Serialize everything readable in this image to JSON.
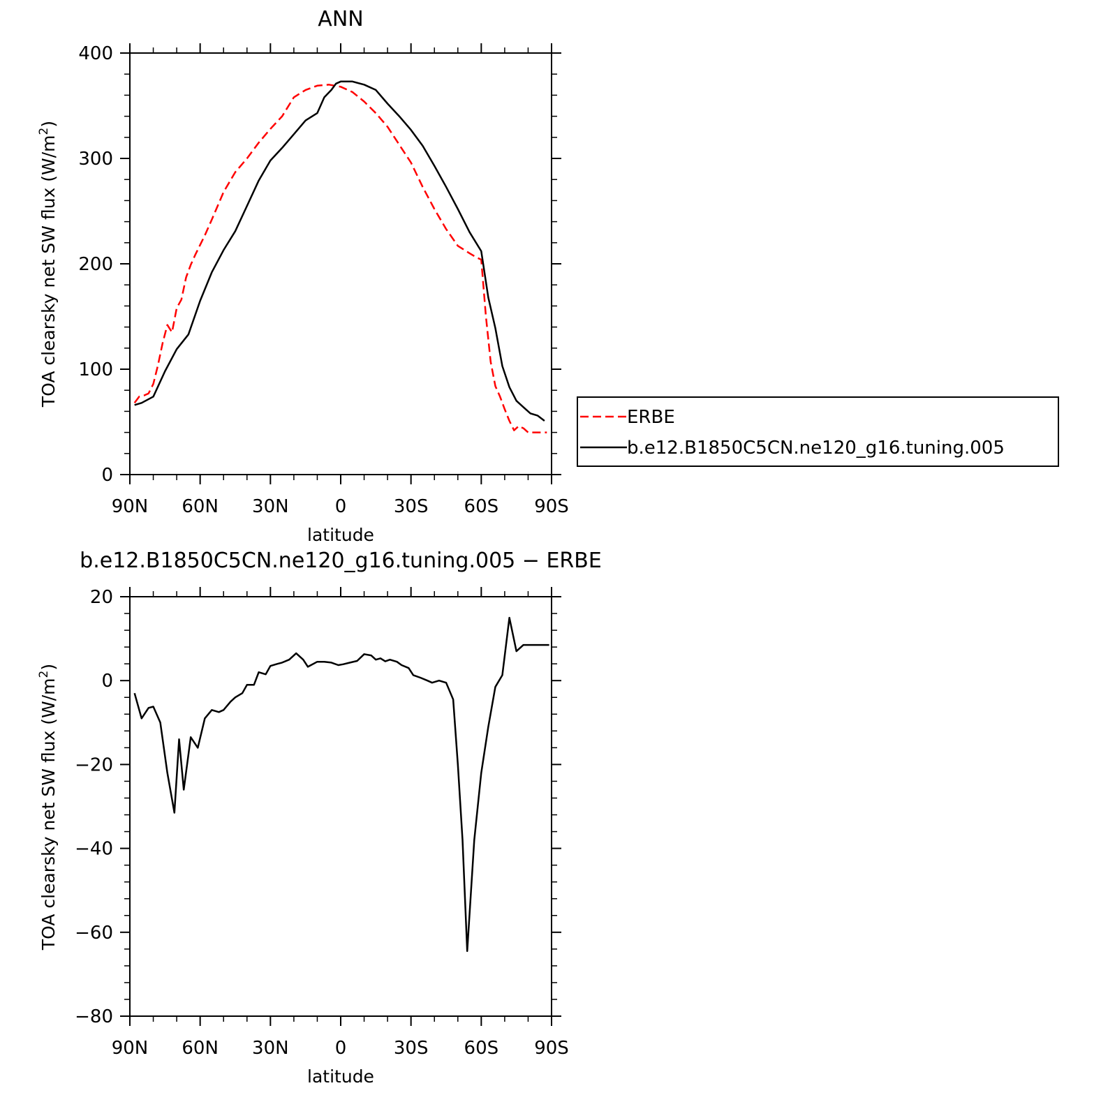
{
  "chart_data": [
    {
      "type": "line",
      "title": "ANN",
      "xlabel": "latitude",
      "ylabel": "TOA clearsky net SW flux (W/m",
      "ylabel_sup": "2",
      "ylabel_tail": ")",
      "xlim": [
        90,
        -90
      ],
      "ylim": [
        0,
        400
      ],
      "x_ticks": [
        {
          "value": 90,
          "label": "90N"
        },
        {
          "value": 60,
          "label": "60N"
        },
        {
          "value": 30,
          "label": "30N"
        },
        {
          "value": 0,
          "label": "0"
        },
        {
          "value": -30,
          "label": "30S"
        },
        {
          "value": -60,
          "label": "60S"
        },
        {
          "value": -90,
          "label": "90S"
        }
      ],
      "y_ticks": [
        {
          "value": 0,
          "label": "0"
        },
        {
          "value": 100,
          "label": "100"
        },
        {
          "value": 200,
          "label": "200"
        },
        {
          "value": 300,
          "label": "300"
        },
        {
          "value": 400,
          "label": "400"
        }
      ],
      "legend": {
        "placement": "right"
      },
      "series": [
        {
          "name": "ERBE",
          "color": "#ff0000",
          "dash": "dashed",
          "x": [
            88,
            86,
            84,
            82,
            80,
            78,
            76,
            74,
            72,
            70,
            68,
            66,
            64,
            62,
            60,
            58,
            55,
            50,
            45,
            40,
            35,
            30,
            25,
            20,
            15,
            10,
            5,
            0,
            -5,
            -10,
            -15,
            -20,
            -25,
            -30,
            -35,
            -40,
            -45,
            -50,
            -55,
            -58,
            -60,
            -62,
            -64,
            -66,
            -68,
            -70,
            -72,
            -74,
            -76,
            -78,
            -80,
            -82,
            -84,
            -86,
            -88
          ],
          "y": [
            68,
            74,
            75,
            77,
            86,
            104,
            125,
            142,
            135,
            158,
            166,
            187,
            199,
            209,
            218,
            227,
            242,
            268,
            287,
            300,
            315,
            328,
            340,
            358,
            365,
            369,
            370,
            368,
            363,
            354,
            343,
            330,
            313,
            296,
            273,
            252,
            233,
            217,
            210,
            206,
            204,
            150,
            107,
            84,
            74,
            62,
            51,
            42,
            46,
            44,
            40,
            40,
            40,
            40,
            40
          ]
        },
        {
          "name": "b.e12.B1850C5CN.ne120_g16.tuning.005",
          "color": "#000000",
          "dash": "solid",
          "x": [
            88,
            85,
            80,
            75,
            70,
            65,
            60,
            55,
            50,
            45,
            40,
            35,
            30,
            25,
            20,
            15,
            10,
            7,
            4,
            2,
            0,
            -5,
            -10,
            -15,
            -20,
            -25,
            -30,
            -35,
            -40,
            -45,
            -50,
            -55,
            -60,
            -63,
            -66,
            -69,
            -72,
            -75,
            -78,
            -81,
            -84,
            -87
          ],
          "y": [
            66,
            68,
            74,
            98,
            119,
            133,
            165,
            192,
            213,
            231,
            255,
            279,
            298,
            310,
            323,
            336,
            343,
            358,
            365,
            371,
            373,
            373,
            370,
            365,
            352,
            340,
            327,
            312,
            293,
            273,
            252,
            230,
            212,
            168,
            139,
            103,
            83,
            70,
            64,
            58,
            56,
            51
          ]
        }
      ]
    },
    {
      "type": "line",
      "title": "b.e12.B1850C5CN.ne120_g16.tuning.005 − ERBE",
      "xlabel": "latitude",
      "ylabel": "TOA clearsky net SW flux (W/m",
      "ylabel_sup": "2",
      "ylabel_tail": ")",
      "xlim": [
        90,
        -90
      ],
      "ylim": [
        -80,
        20
      ],
      "x_ticks": [
        {
          "value": 90,
          "label": "90N"
        },
        {
          "value": 60,
          "label": "60N"
        },
        {
          "value": 30,
          "label": "30N"
        },
        {
          "value": 0,
          "label": "0"
        },
        {
          "value": -30,
          "label": "30S"
        },
        {
          "value": -60,
          "label": "60S"
        },
        {
          "value": -90,
          "label": "90S"
        }
      ],
      "y_ticks": [
        {
          "value": -80,
          "label": "−80"
        },
        {
          "value": -60,
          "label": "−60"
        },
        {
          "value": -40,
          "label": "−40"
        },
        {
          "value": -20,
          "label": "−20"
        },
        {
          "value": 0,
          "label": "0"
        },
        {
          "value": 20,
          "label": "20"
        }
      ],
      "series": [
        {
          "color": "#000000",
          "dash": "solid",
          "x": [
            88,
            85,
            82,
            80,
            77,
            74,
            71,
            69,
            67,
            64,
            61,
            58,
            55,
            52,
            50,
            47,
            45,
            42,
            40,
            37,
            35,
            32,
            30,
            27,
            25,
            22,
            19,
            16,
            14,
            10,
            7,
            4,
            1,
            -1,
            -4,
            -7,
            -10,
            -13,
            -15,
            -17,
            -19,
            -21,
            -24,
            -26,
            -29,
            -31,
            -34,
            -37,
            -39,
            -42,
            -45,
            -48,
            -50,
            -52,
            -54,
            -57,
            -60,
            -63,
            -66,
            -69,
            -72,
            -75,
            -78,
            -81,
            -84,
            -87,
            -89
          ],
          "y": [
            -3,
            -9,
            -6.5,
            -6.2,
            -10,
            -22,
            -31.5,
            -14,
            -26,
            -13.5,
            -16,
            -9,
            -7,
            -7.5,
            -7,
            -5,
            -4,
            -3,
            -1,
            -1,
            2,
            1.5,
            3.5,
            4,
            4.3,
            5,
            6.5,
            5,
            3.3,
            4.5,
            4.5,
            4.3,
            3.7,
            3.9,
            4.3,
            4.7,
            6.3,
            6,
            5,
            5.3,
            4.6,
            5,
            4.5,
            3.7,
            3,
            1.3,
            0.7,
            0,
            -0.5,
            0,
            -0.5,
            -4.5,
            -20,
            -38,
            -64.5,
            -38,
            -22,
            -11,
            -1.5,
            1.3,
            15,
            7,
            8.5,
            8.5,
            8.5,
            8.5,
            8.5
          ]
        }
      ]
    }
  ]
}
